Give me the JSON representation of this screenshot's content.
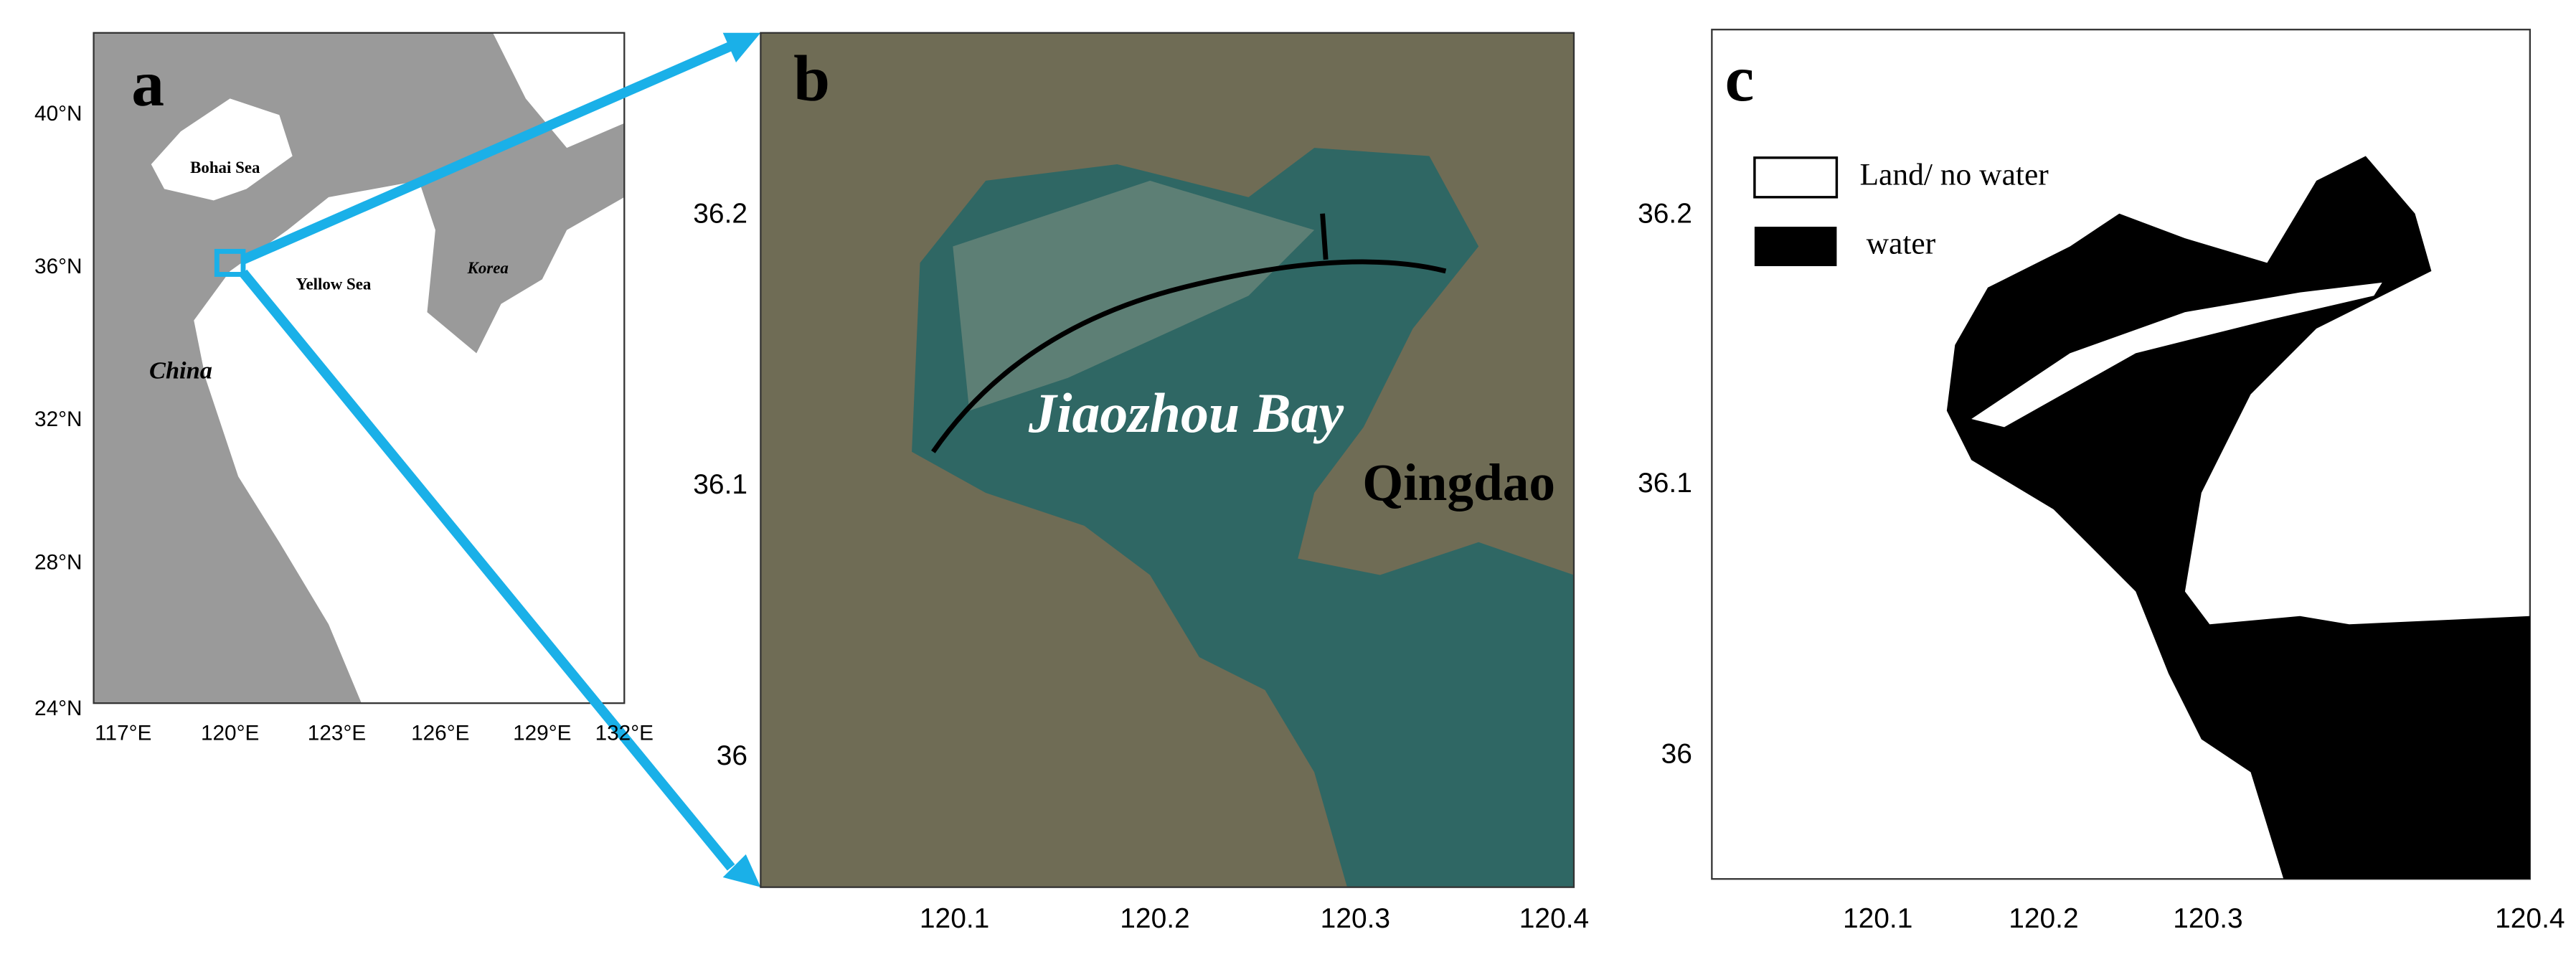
{
  "panels": [
    {
      "label": "a",
      "y_ticks": [
        "40°N",
        "36°N",
        "32°N",
        "28°N",
        "24°N"
      ],
      "x_ticks": [
        "117°E",
        "120°E",
        "123°E",
        "126°E",
        "129°E",
        "132°E"
      ],
      "places": [
        "Bohai Sea",
        "Yellow Sea",
        "Korea",
        "China"
      ]
    },
    {
      "label": "b",
      "y_ticks": [
        "36.2",
        "36.1",
        "36"
      ],
      "x_ticks": [
        "120.1",
        "120.2",
        "120.3",
        "120.4"
      ],
      "places": [
        "Jiaozhou Bay",
        "Qingdao"
      ]
    },
    {
      "label": "c",
      "y_ticks": [
        "36.2",
        "36.1",
        "36"
      ],
      "x_ticks": [
        "120.1",
        "120.2",
        "120.3",
        "120.4"
      ],
      "legend": [
        "Land/ no water",
        "water"
      ]
    }
  ]
}
